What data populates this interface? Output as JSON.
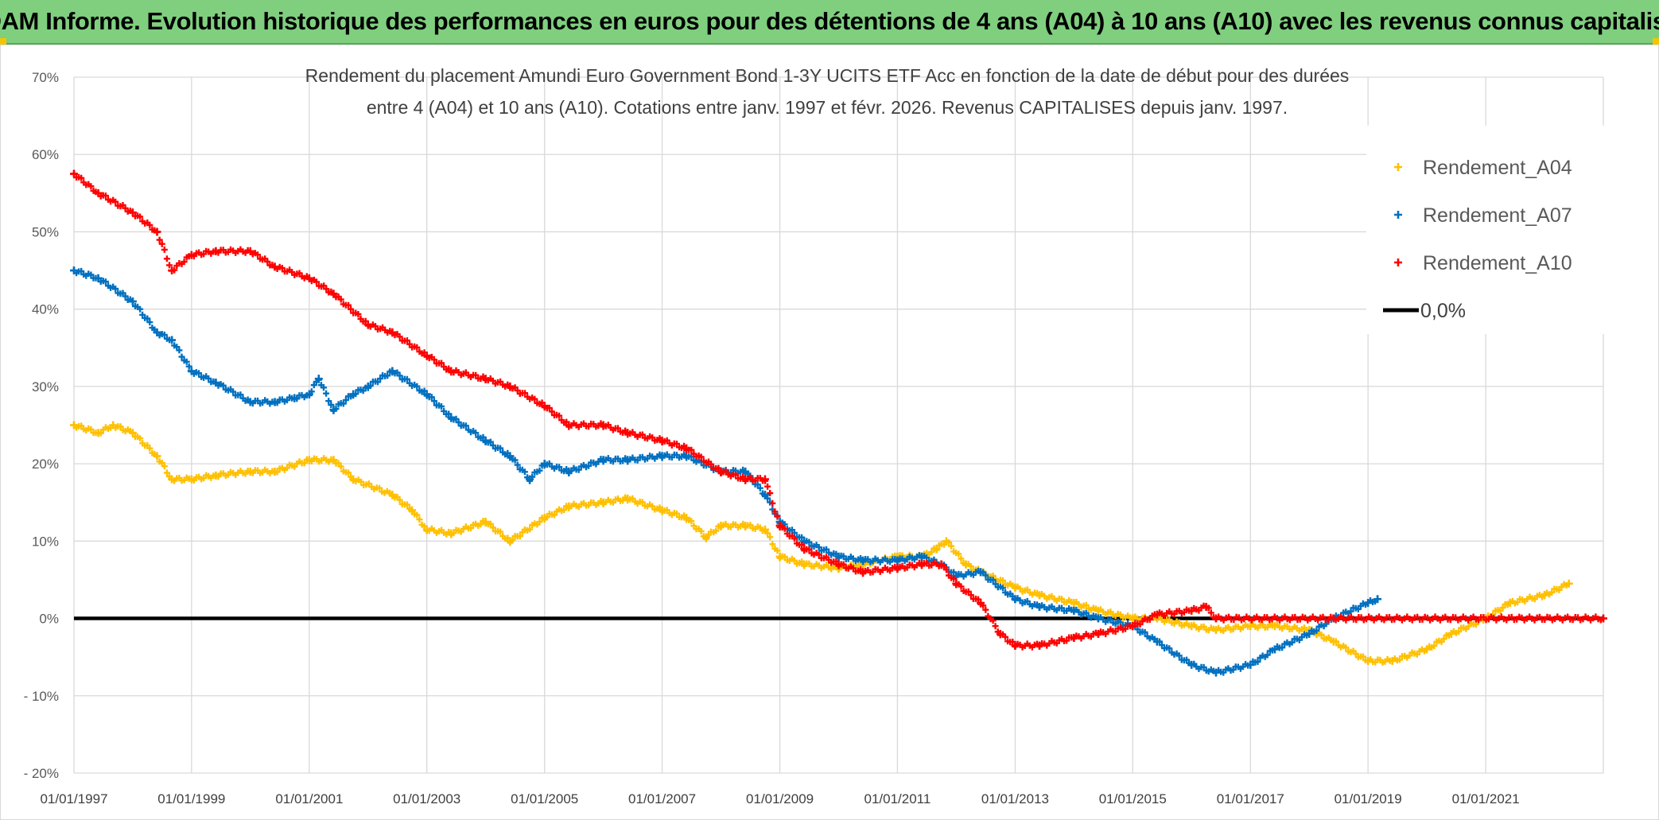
{
  "header": {
    "banner": "ADAM Informe. Evolution historique des performances en euros pour des détentions de 4 ans (A04) à 10 ans (A10) avec les revenus connus capitalisés"
  },
  "colors": {
    "banner_bg": "#7fcf7f",
    "series_a04": "#ffc000",
    "series_a07": "#0070c0",
    "series_a10": "#ff0000",
    "zero_line": "#000000",
    "grid": "#d9d9d9"
  },
  "chart_data": {
    "type": "scatter",
    "title_line1": "Rendement du placement Amundi Euro Government Bond 1-3Y UCITS ETF Acc en fonction de la date de début pour des durées",
    "title_line2": "entre 4 (A04) et 10 ans (A10). Cotations entre janv. 1997 et févr. 2026. Revenus CAPITALISES depuis janv. 1997.",
    "xlabel": "",
    "ylabel": "",
    "x_range": [
      "1997-01-01",
      "2023-01-01"
    ],
    "ylim": [
      -20,
      70
    ],
    "y_ticks": [
      {
        "value": 70,
        "label": "70%"
      },
      {
        "value": 60,
        "label": "60%"
      },
      {
        "value": 50,
        "label": "50%"
      },
      {
        "value": 40,
        "label": "40%"
      },
      {
        "value": 30,
        "label": "30%"
      },
      {
        "value": 20,
        "label": "20%"
      },
      {
        "value": 10,
        "label": "10%"
      },
      {
        "value": 0,
        "label": "0%"
      },
      {
        "value": -10,
        "label": "- 10%"
      },
      {
        "value": -20,
        "label": "- 20%"
      }
    ],
    "x_ticks": [
      {
        "date": "1997-01-01",
        "label": "01/01/1997"
      },
      {
        "date": "1999-01-01",
        "label": "01/01/1999"
      },
      {
        "date": "2001-01-01",
        "label": "01/01/2001"
      },
      {
        "date": "2003-01-01",
        "label": "01/01/2003"
      },
      {
        "date": "2005-01-01",
        "label": "01/01/2005"
      },
      {
        "date": "2007-01-01",
        "label": "01/01/2007"
      },
      {
        "date": "2009-01-01",
        "label": "01/01/2009"
      },
      {
        "date": "2011-01-01",
        "label": "01/01/2011"
      },
      {
        "date": "2013-01-01",
        "label": "01/01/2013"
      },
      {
        "date": "2015-01-01",
        "label": "01/01/2015"
      },
      {
        "date": "2017-01-01",
        "label": "01/01/2017"
      },
      {
        "date": "2019-01-01",
        "label": "01/01/2019"
      },
      {
        "date": "2021-01-01",
        "label": "01/01/2021"
      }
    ],
    "grid": true,
    "legend_position": "top-right",
    "series": [
      {
        "name": "Rendement_A04",
        "marker": "+",
        "points": [
          [
            "1997-01-01",
            25
          ],
          [
            "1997-06-01",
            24
          ],
          [
            "1997-09-01",
            25
          ],
          [
            "1998-01-01",
            24
          ],
          [
            "1998-06-01",
            21
          ],
          [
            "1998-09-01",
            18
          ],
          [
            "1999-01-01",
            18
          ],
          [
            "1999-06-01",
            18.5
          ],
          [
            "2000-01-01",
            19
          ],
          [
            "2000-06-01",
            19
          ],
          [
            "2001-01-01",
            20.5
          ],
          [
            "2001-06-01",
            20.5
          ],
          [
            "2001-10-01",
            18
          ],
          [
            "2002-06-01",
            16
          ],
          [
            "2002-10-01",
            14
          ],
          [
            "2003-01-01",
            11.5
          ],
          [
            "2003-06-01",
            11
          ],
          [
            "2004-01-01",
            12.5
          ],
          [
            "2004-06-01",
            10
          ],
          [
            "2005-01-01",
            13
          ],
          [
            "2005-06-01",
            14.5
          ],
          [
            "2006-01-01",
            15
          ],
          [
            "2006-06-01",
            15.5
          ],
          [
            "2007-01-01",
            14
          ],
          [
            "2007-06-01",
            13
          ],
          [
            "2007-10-01",
            10.5
          ],
          [
            "2008-01-01",
            12
          ],
          [
            "2008-06-01",
            12
          ],
          [
            "2008-10-01",
            11.5
          ],
          [
            "2009-01-01",
            8
          ],
          [
            "2009-06-01",
            7
          ],
          [
            "2010-01-01",
            6.5
          ],
          [
            "2010-06-01",
            7
          ],
          [
            "2011-01-01",
            8
          ],
          [
            "2011-06-01",
            8
          ],
          [
            "2011-09-01",
            9
          ],
          [
            "2011-11-01",
            10
          ],
          [
            "2012-03-01",
            7
          ],
          [
            "2012-06-01",
            6
          ],
          [
            "2013-01-01",
            4
          ],
          [
            "2013-06-01",
            3
          ],
          [
            "2014-01-01",
            2
          ],
          [
            "2014-06-01",
            1
          ],
          [
            "2015-01-01",
            0
          ],
          [
            "2015-06-01",
            0
          ],
          [
            "2016-01-01",
            -1
          ],
          [
            "2016-06-01",
            -1.5
          ],
          [
            "2017-01-01",
            -1
          ],
          [
            "2017-06-01",
            -1
          ],
          [
            "2018-01-01",
            -1.5
          ],
          [
            "2018-06-01",
            -3
          ],
          [
            "2019-01-01",
            -5.5
          ],
          [
            "2019-06-01",
            -5.5
          ],
          [
            "2020-01-01",
            -4
          ],
          [
            "2020-06-01",
            -2
          ],
          [
            "2021-01-01",
            0
          ],
          [
            "2021-06-01",
            2
          ],
          [
            "2022-01-01",
            3
          ],
          [
            "2022-06-01",
            4.5
          ]
        ]
      },
      {
        "name": "Rendement_A07",
        "marker": "+",
        "points": [
          [
            "1997-01-01",
            45
          ],
          [
            "1997-06-01",
            44
          ],
          [
            "1998-01-01",
            41
          ],
          [
            "1998-06-01",
            37
          ],
          [
            "1998-09-01",
            36
          ],
          [
            "1999-01-01",
            32
          ],
          [
            "1999-06-01",
            30.5
          ],
          [
            "2000-01-01",
            28
          ],
          [
            "2000-06-01",
            28
          ],
          [
            "2000-10-01",
            28.5
          ],
          [
            "2001-01-01",
            29
          ],
          [
            "2001-03-01",
            31
          ],
          [
            "2001-06-01",
            27
          ],
          [
            "2001-10-01",
            29
          ],
          [
            "2002-01-01",
            30
          ],
          [
            "2002-06-01",
            32
          ],
          [
            "2003-01-01",
            29
          ],
          [
            "2003-06-01",
            26
          ],
          [
            "2004-01-01",
            23
          ],
          [
            "2004-06-01",
            21
          ],
          [
            "2004-10-01",
            18
          ],
          [
            "2005-01-01",
            20
          ],
          [
            "2005-06-01",
            19
          ],
          [
            "2006-01-01",
            20.5
          ],
          [
            "2006-06-01",
            20.5
          ],
          [
            "2007-01-01",
            21
          ],
          [
            "2007-06-01",
            21
          ],
          [
            "2008-01-01",
            19
          ],
          [
            "2008-06-01",
            19
          ],
          [
            "2008-10-01",
            16
          ],
          [
            "2009-01-01",
            12.5
          ],
          [
            "2009-06-01",
            10
          ],
          [
            "2010-01-01",
            8
          ],
          [
            "2010-06-01",
            7.5
          ],
          [
            "2011-01-01",
            7.5
          ],
          [
            "2011-06-01",
            8
          ],
          [
            "2011-10-01",
            7
          ],
          [
            "2012-01-01",
            5.5
          ],
          [
            "2012-06-01",
            6
          ],
          [
            "2013-01-01",
            2.5
          ],
          [
            "2013-06-01",
            1.5
          ],
          [
            "2014-01-01",
            1
          ],
          [
            "2014-06-01",
            0
          ],
          [
            "2015-01-01",
            -1
          ],
          [
            "2015-06-01",
            -3
          ],
          [
            "2016-01-01",
            -6
          ],
          [
            "2016-06-01",
            -7
          ],
          [
            "2017-01-01",
            -6
          ],
          [
            "2017-06-01",
            -4
          ],
          [
            "2018-01-01",
            -2
          ],
          [
            "2018-06-01",
            0
          ],
          [
            "2019-01-01",
            2
          ],
          [
            "2019-03-01",
            2.5
          ]
        ]
      },
      {
        "name": "Rendement_A10",
        "marker": "+",
        "points": [
          [
            "1997-01-01",
            57.5
          ],
          [
            "1997-06-01",
            55
          ],
          [
            "1998-01-01",
            52.5
          ],
          [
            "1998-06-01",
            50
          ],
          [
            "1998-09-01",
            45
          ],
          [
            "1999-01-01",
            47
          ],
          [
            "1999-06-01",
            47.5
          ],
          [
            "2000-01-01",
            47.5
          ],
          [
            "2000-06-01",
            45.5
          ],
          [
            "2001-01-01",
            44
          ],
          [
            "2001-06-01",
            42
          ],
          [
            "2002-01-01",
            38
          ],
          [
            "2002-06-01",
            37
          ],
          [
            "2003-01-01",
            34
          ],
          [
            "2003-06-01",
            32
          ],
          [
            "2004-01-01",
            31
          ],
          [
            "2004-06-01",
            30
          ],
          [
            "2005-01-01",
            27.5
          ],
          [
            "2005-06-01",
            25
          ],
          [
            "2006-01-01",
            25
          ],
          [
            "2006-06-01",
            24
          ],
          [
            "2007-01-01",
            23
          ],
          [
            "2007-06-01",
            22
          ],
          [
            "2008-01-01",
            19
          ],
          [
            "2008-06-01",
            18
          ],
          [
            "2008-10-01",
            18
          ],
          [
            "2009-01-01",
            12
          ],
          [
            "2009-06-01",
            9
          ],
          [
            "2010-01-01",
            7
          ],
          [
            "2010-06-01",
            6
          ],
          [
            "2011-01-01",
            6.5
          ],
          [
            "2011-06-01",
            7
          ],
          [
            "2011-10-01",
            7
          ],
          [
            "2012-01-01",
            4.5
          ],
          [
            "2012-06-01",
            2
          ],
          [
            "2012-10-01",
            -2
          ],
          [
            "2013-01-01",
            -3.5
          ],
          [
            "2013-06-01",
            -3.5
          ],
          [
            "2014-01-01",
            -2.5
          ],
          [
            "2014-06-01",
            -2
          ],
          [
            "2015-01-01",
            -1
          ],
          [
            "2015-06-01",
            0.5
          ],
          [
            "2016-01-01",
            1
          ],
          [
            "2016-04-01",
            1.5
          ],
          [
            "2016-06-01",
            0
          ],
          [
            "2023-01-01",
            0
          ]
        ]
      }
    ],
    "zero_line": {
      "label": "0,0%",
      "value": 0
    }
  }
}
